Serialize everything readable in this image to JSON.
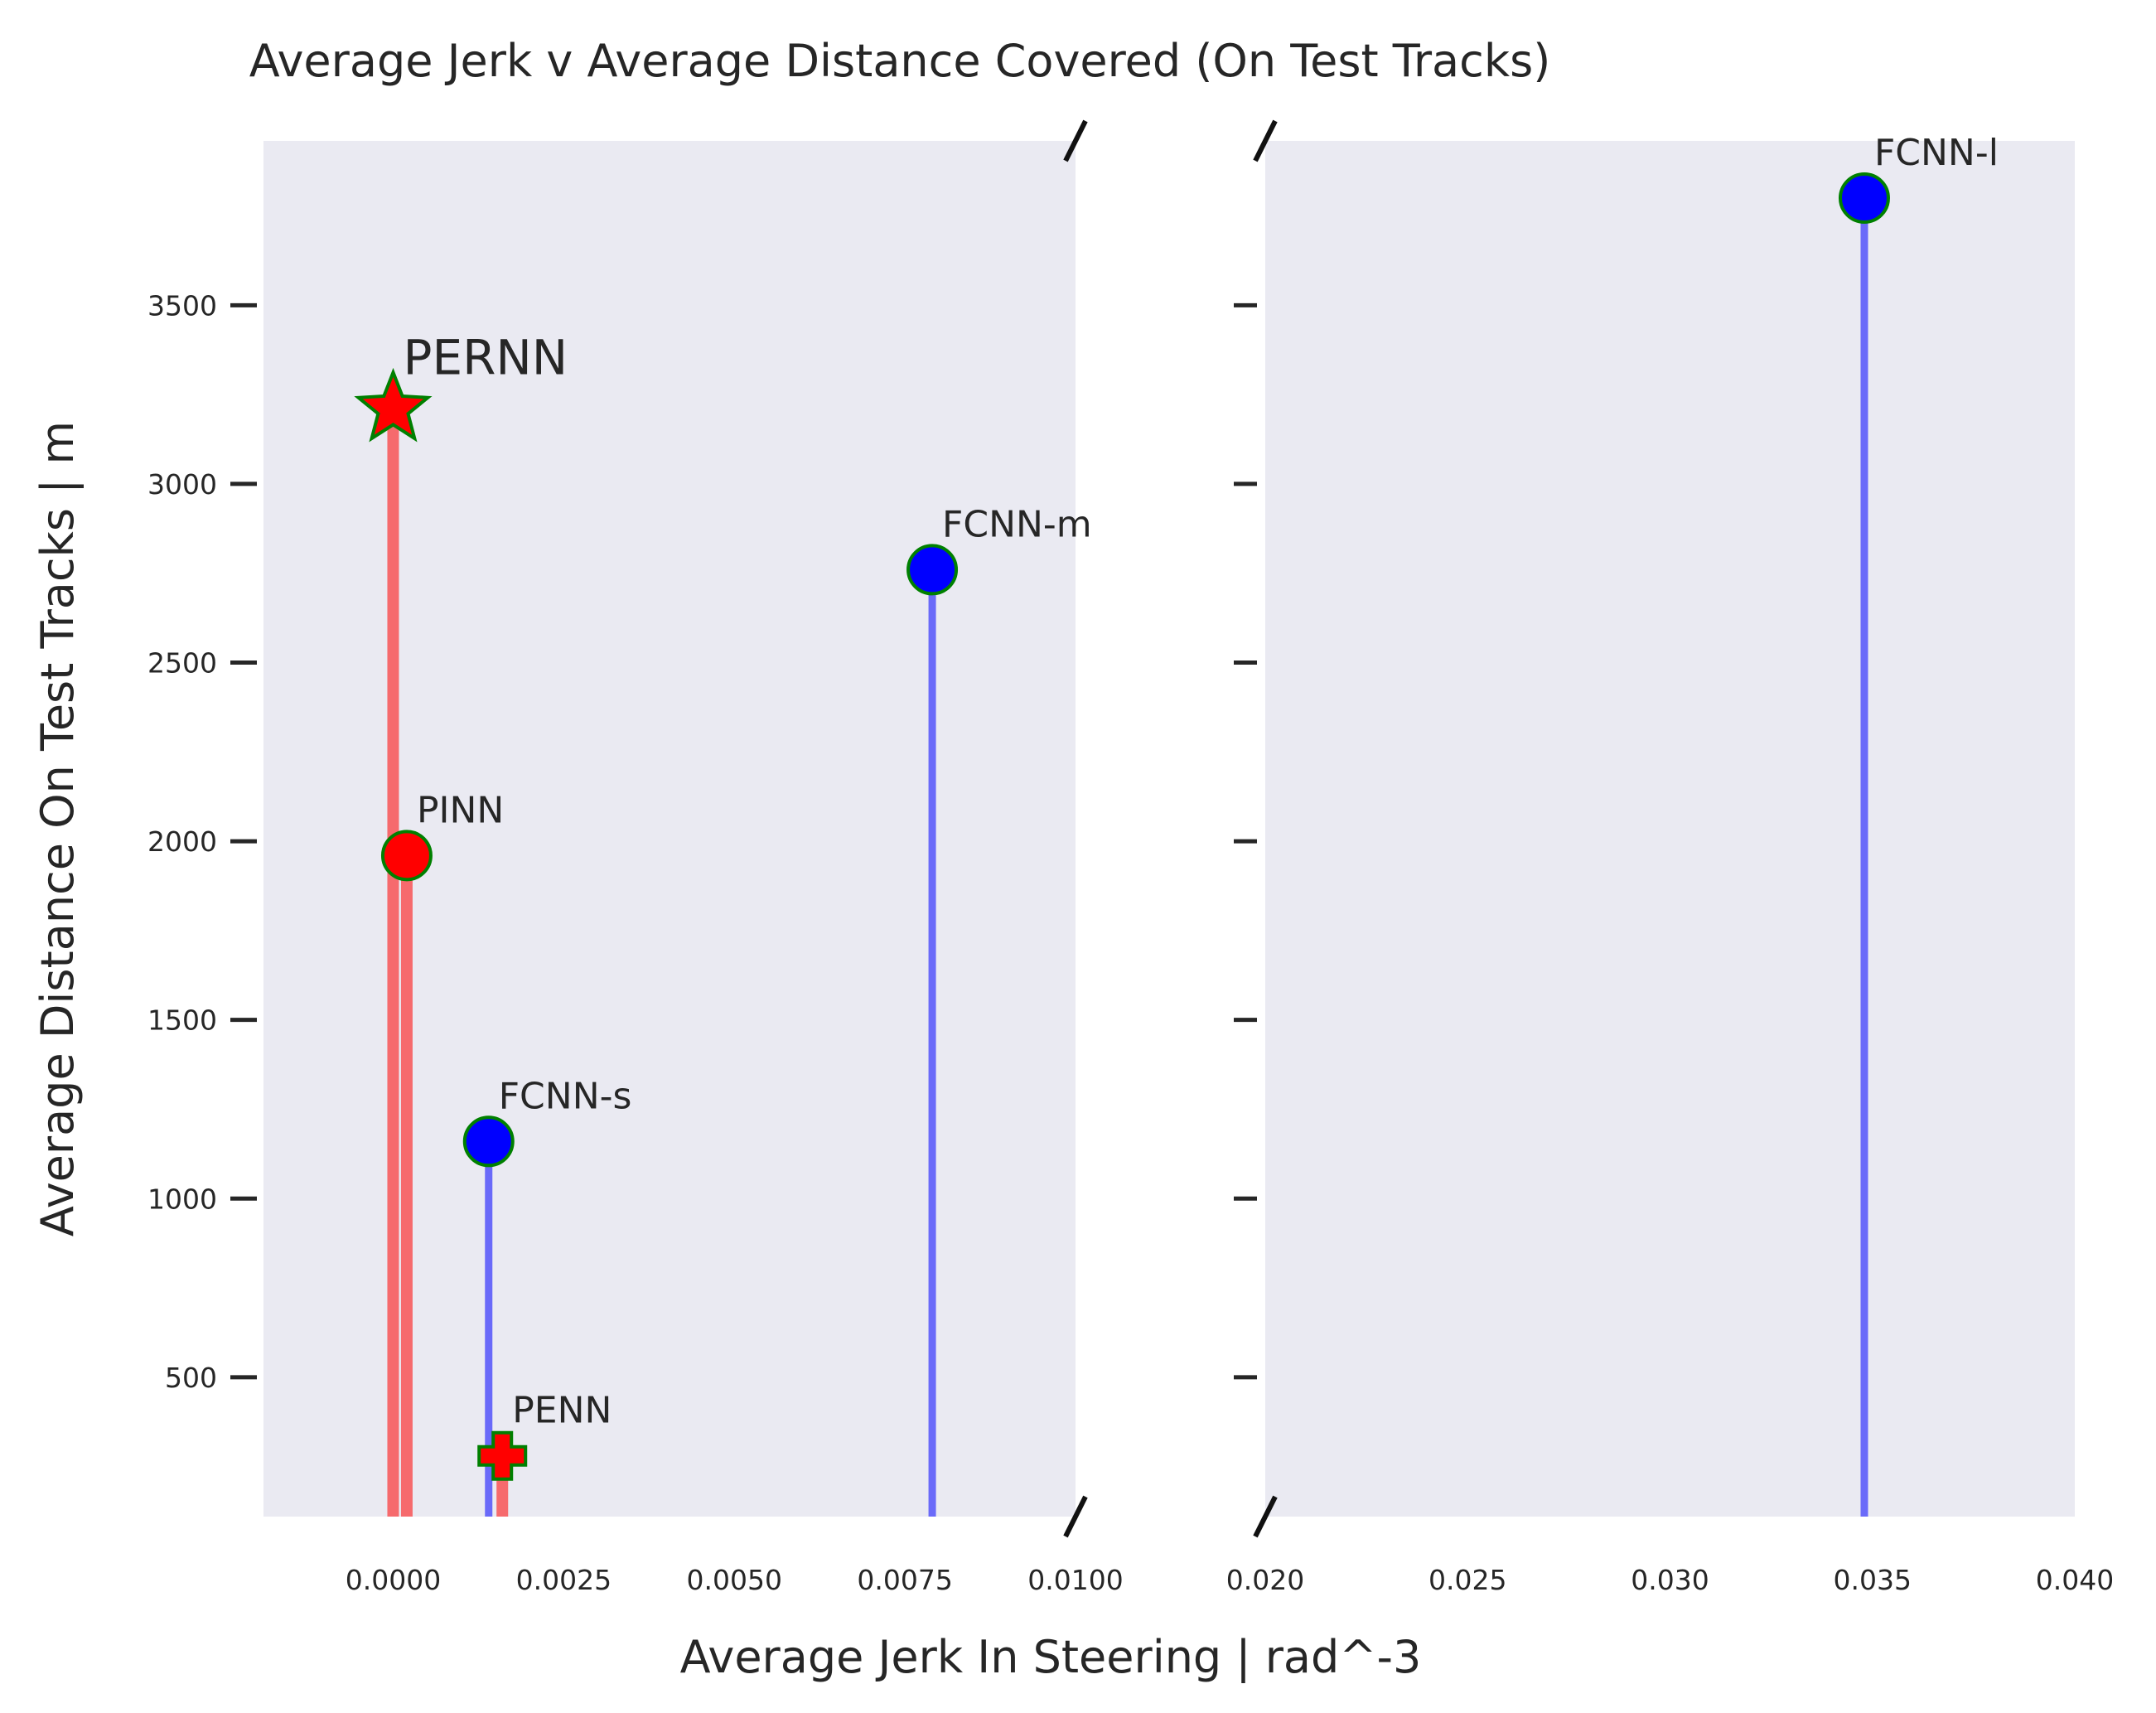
{
  "chart_data": {
    "type": "scatter",
    "title": "Average Jerk v Average Distance Covered (On Test Tracks)",
    "xlabel": "Average Jerk In Steering | rad^-3",
    "ylabel": "Average Distance On Test Tracks | m",
    "broken_x_axis": true,
    "x_segments": [
      {
        "xlim": [
          -0.0019,
          0.01
        ],
        "ticks": [
          0.0,
          0.0025,
          0.005,
          0.0075,
          0.01
        ],
        "tick_labels": [
          "0.0000",
          "0.0025",
          "0.0050",
          "0.0075",
          "0.0100"
        ]
      },
      {
        "xlim": [
          0.02,
          0.04
        ],
        "ticks": [
          0.02,
          0.025,
          0.03,
          0.035,
          0.04
        ],
        "tick_labels": [
          "0.020",
          "0.025",
          "0.030",
          "0.035",
          "0.040"
        ]
      }
    ],
    "ylim": [
      110,
      3960
    ],
    "yticks": [
      500,
      1000,
      1500,
      2000,
      2500,
      3000,
      3500
    ],
    "ytick_labels": [
      "500",
      "1000",
      "1500",
      "2000",
      "2500",
      "3000",
      "3500"
    ],
    "grid": false,
    "points": [
      {
        "label": "PERNN",
        "x": 0.0,
        "y": 3210,
        "marker": "star",
        "color": "#ff0000",
        "stem_color": "#ff0000"
      },
      {
        "label": "PINN",
        "x": 0.0002,
        "y": 1960,
        "marker": "circle",
        "color": "#ff0000",
        "stem_color": "#ff0000"
      },
      {
        "label": "FCNN-s",
        "x": 0.0014,
        "y": 1160,
        "marker": "circle",
        "color": "#0000ff",
        "stem_color": "#0000ff"
      },
      {
        "label": "PENN",
        "x": 0.0016,
        "y": 280,
        "marker": "plus",
        "color": "#ff0000",
        "stem_color": "#ff0000"
      },
      {
        "label": "FCNN-m",
        "x": 0.0079,
        "y": 2760,
        "marker": "circle",
        "color": "#0000ff",
        "stem_color": "#0000ff"
      },
      {
        "label": "FCNN-l",
        "x": 0.0348,
        "y": 3800,
        "marker": "circle",
        "color": "#0000ff",
        "stem_color": "#0000ff"
      }
    ],
    "colors": {
      "plot_background": "#eaeaf2",
      "marker_edge": "#008000",
      "red": "#ff0000",
      "blue": "#0000ff"
    }
  }
}
